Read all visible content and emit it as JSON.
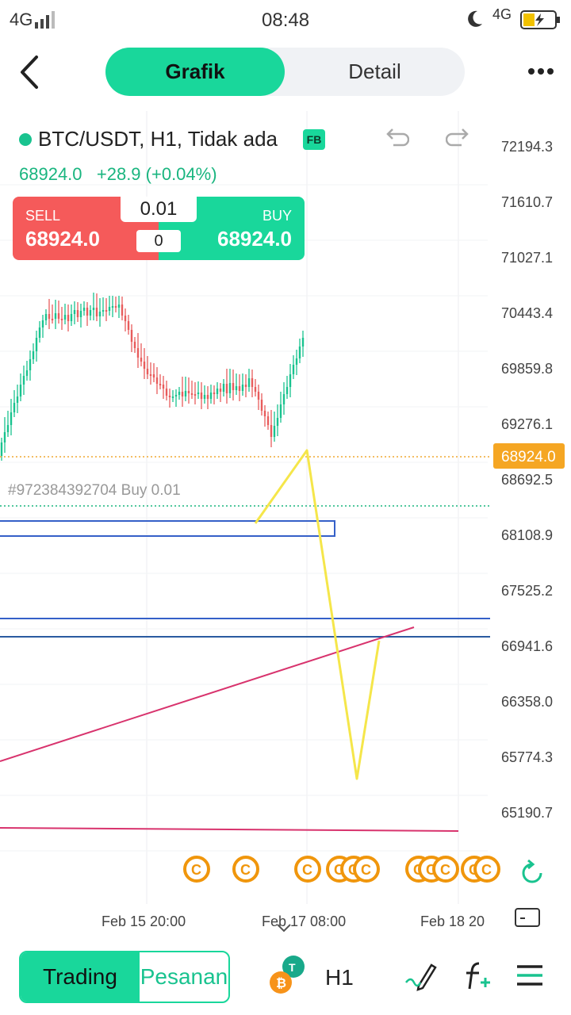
{
  "status_bar": {
    "left_network": "4G",
    "time": "08:48",
    "right_network": "4G"
  },
  "header": {
    "tabs": [
      {
        "label": "Grafik",
        "active": true
      },
      {
        "label": "Detail",
        "active": false
      }
    ],
    "accent_color": "#19d79b"
  },
  "symbol": {
    "title": "BTC/USDT, H1, Tidak ada",
    "badge": "FB",
    "last_price": "68924.0",
    "change": "+28.9 (+0.04%)"
  },
  "trade_widget": {
    "sell_label": "SELL",
    "sell_price": "68924.0",
    "buy_label": "BUY",
    "buy_price": "68924.0",
    "lot": "0.01",
    "qty": "0",
    "sell_color": "#f55a5a",
    "buy_color": "#19d79b"
  },
  "chart": {
    "price_axis": [
      "72194.3",
      "71610.7",
      "71027.1",
      "70443.4",
      "69859.8",
      "69276.1",
      "68692.5",
      "68108.9",
      "67525.2",
      "66941.6",
      "66358.0",
      "65774.3",
      "65190.7"
    ],
    "current_price_tag": "68924.0",
    "position_label": "#972384392704 Buy 0.01",
    "time_axis": [
      "Feb 15 20:00",
      "Feb 17 08:00",
      "Feb 18 20"
    ],
    "event_marker": "C",
    "up_color": "#19c38f",
    "down_color": "#e85c5c"
  },
  "bottom_nav": {
    "trading_label": "Trading",
    "pesanan_label": "Pesanan",
    "timeframe": "H1"
  }
}
